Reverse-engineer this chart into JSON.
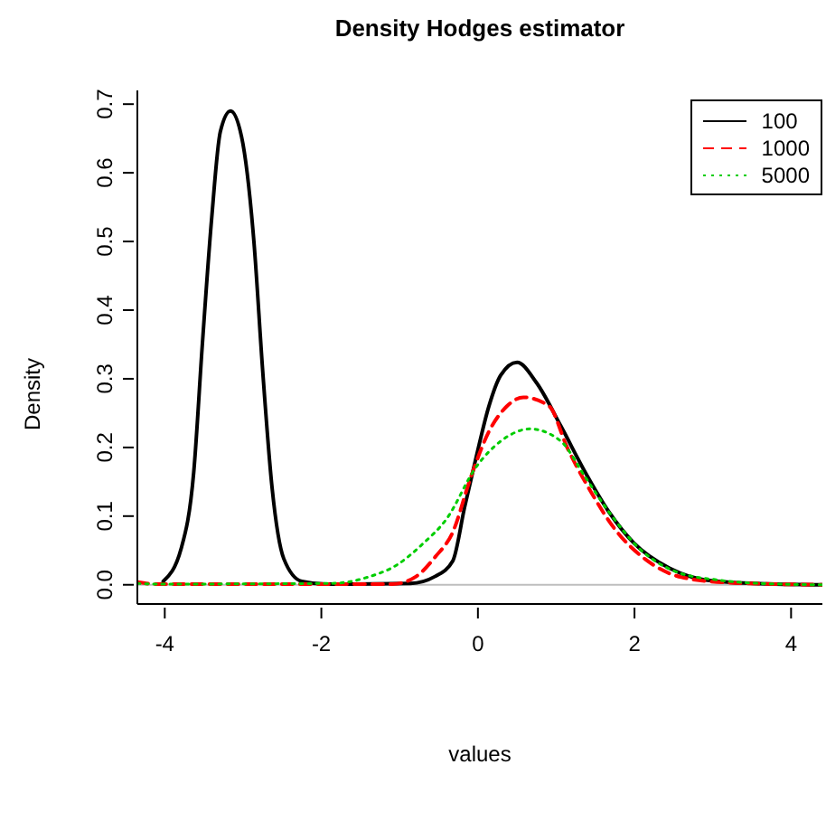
{
  "chart_data": {
    "type": "line",
    "title": "Density Hodges estimator",
    "xlabel": "values",
    "ylabel": "Density",
    "xlim": [
      -4.35,
      4.4
    ],
    "ylim": [
      -0.028,
      0.72
    ],
    "xticks": [
      -4,
      -2,
      0,
      2,
      4
    ],
    "yticks": [
      {
        "value": 0,
        "label": "0.0"
      },
      {
        "value": 0.1,
        "label": "0.1"
      },
      {
        "value": 0.2,
        "label": "0.2"
      },
      {
        "value": 0.3,
        "label": "0.3"
      },
      {
        "value": 0.4,
        "label": "0.4"
      },
      {
        "value": 0.5,
        "label": "0.5"
      },
      {
        "value": 0.6,
        "label": "0.6"
      },
      {
        "value": 0.7,
        "label": "0.7"
      }
    ],
    "grid": false,
    "legend": "top right",
    "marker": "none",
    "ref_lines": [
      {
        "axis": "y",
        "value": 0,
        "color": "#bebebe"
      }
    ],
    "series": [
      {
        "name": "100",
        "color": "#000000",
        "line_style": "solid",
        "x": [
          -4.02,
          -3.79,
          -3.63,
          -3.52,
          -3.4,
          -3.29,
          -3.16,
          -3.02,
          -2.86,
          -2.75,
          -2.63,
          -2.48,
          -2.25,
          -1.94,
          -0.86,
          -0.55,
          -0.32,
          -0.17,
          -0.02,
          0.14,
          0.29,
          0.5,
          0.75,
          1.06,
          1.37,
          1.68,
          1.99,
          2.45,
          2.91,
          3.53,
          4.4
        ],
        "values": [
          0.005,
          0.053,
          0.164,
          0.35,
          0.535,
          0.66,
          0.69,
          0.653,
          0.498,
          0.313,
          0.142,
          0.038,
          0.005,
          0.001,
          0.002,
          0.012,
          0.035,
          0.113,
          0.187,
          0.26,
          0.305,
          0.324,
          0.294,
          0.231,
          0.164,
          0.105,
          0.061,
          0.024,
          0.007,
          0.002,
          0
        ]
      },
      {
        "name": "1000",
        "color": "#ff0000",
        "line_style": "dashed",
        "x": [
          -4.35,
          -4.1,
          -1.09,
          -0.79,
          -0.55,
          -0.32,
          -0.09,
          0.14,
          0.37,
          0.58,
          0.91,
          1.14,
          1.45,
          1.75,
          2.14,
          2.6,
          3.21,
          4.4
        ],
        "values": [
          0.004,
          0.001,
          0.001,
          0.012,
          0.04,
          0.077,
          0.157,
          0.223,
          0.26,
          0.273,
          0.26,
          0.2,
          0.134,
          0.081,
          0.037,
          0.011,
          0.003,
          0
        ]
      },
      {
        "name": "5000",
        "color": "#00cd00",
        "line_style": "dotted",
        "x": [
          -4.35,
          -4.1,
          -1.87,
          -1.41,
          -1.02,
          -0.71,
          -0.4,
          -0.02,
          0.29,
          0.67,
          1.06,
          1.37,
          1.68,
          2.06,
          2.53,
          3.06,
          3.83,
          4.4
        ],
        "values": [
          0.002,
          0.001,
          0.002,
          0.011,
          0.03,
          0.059,
          0.096,
          0.172,
          0.209,
          0.227,
          0.209,
          0.157,
          0.105,
          0.053,
          0.019,
          0.007,
          0.001,
          0
        ]
      }
    ]
  }
}
